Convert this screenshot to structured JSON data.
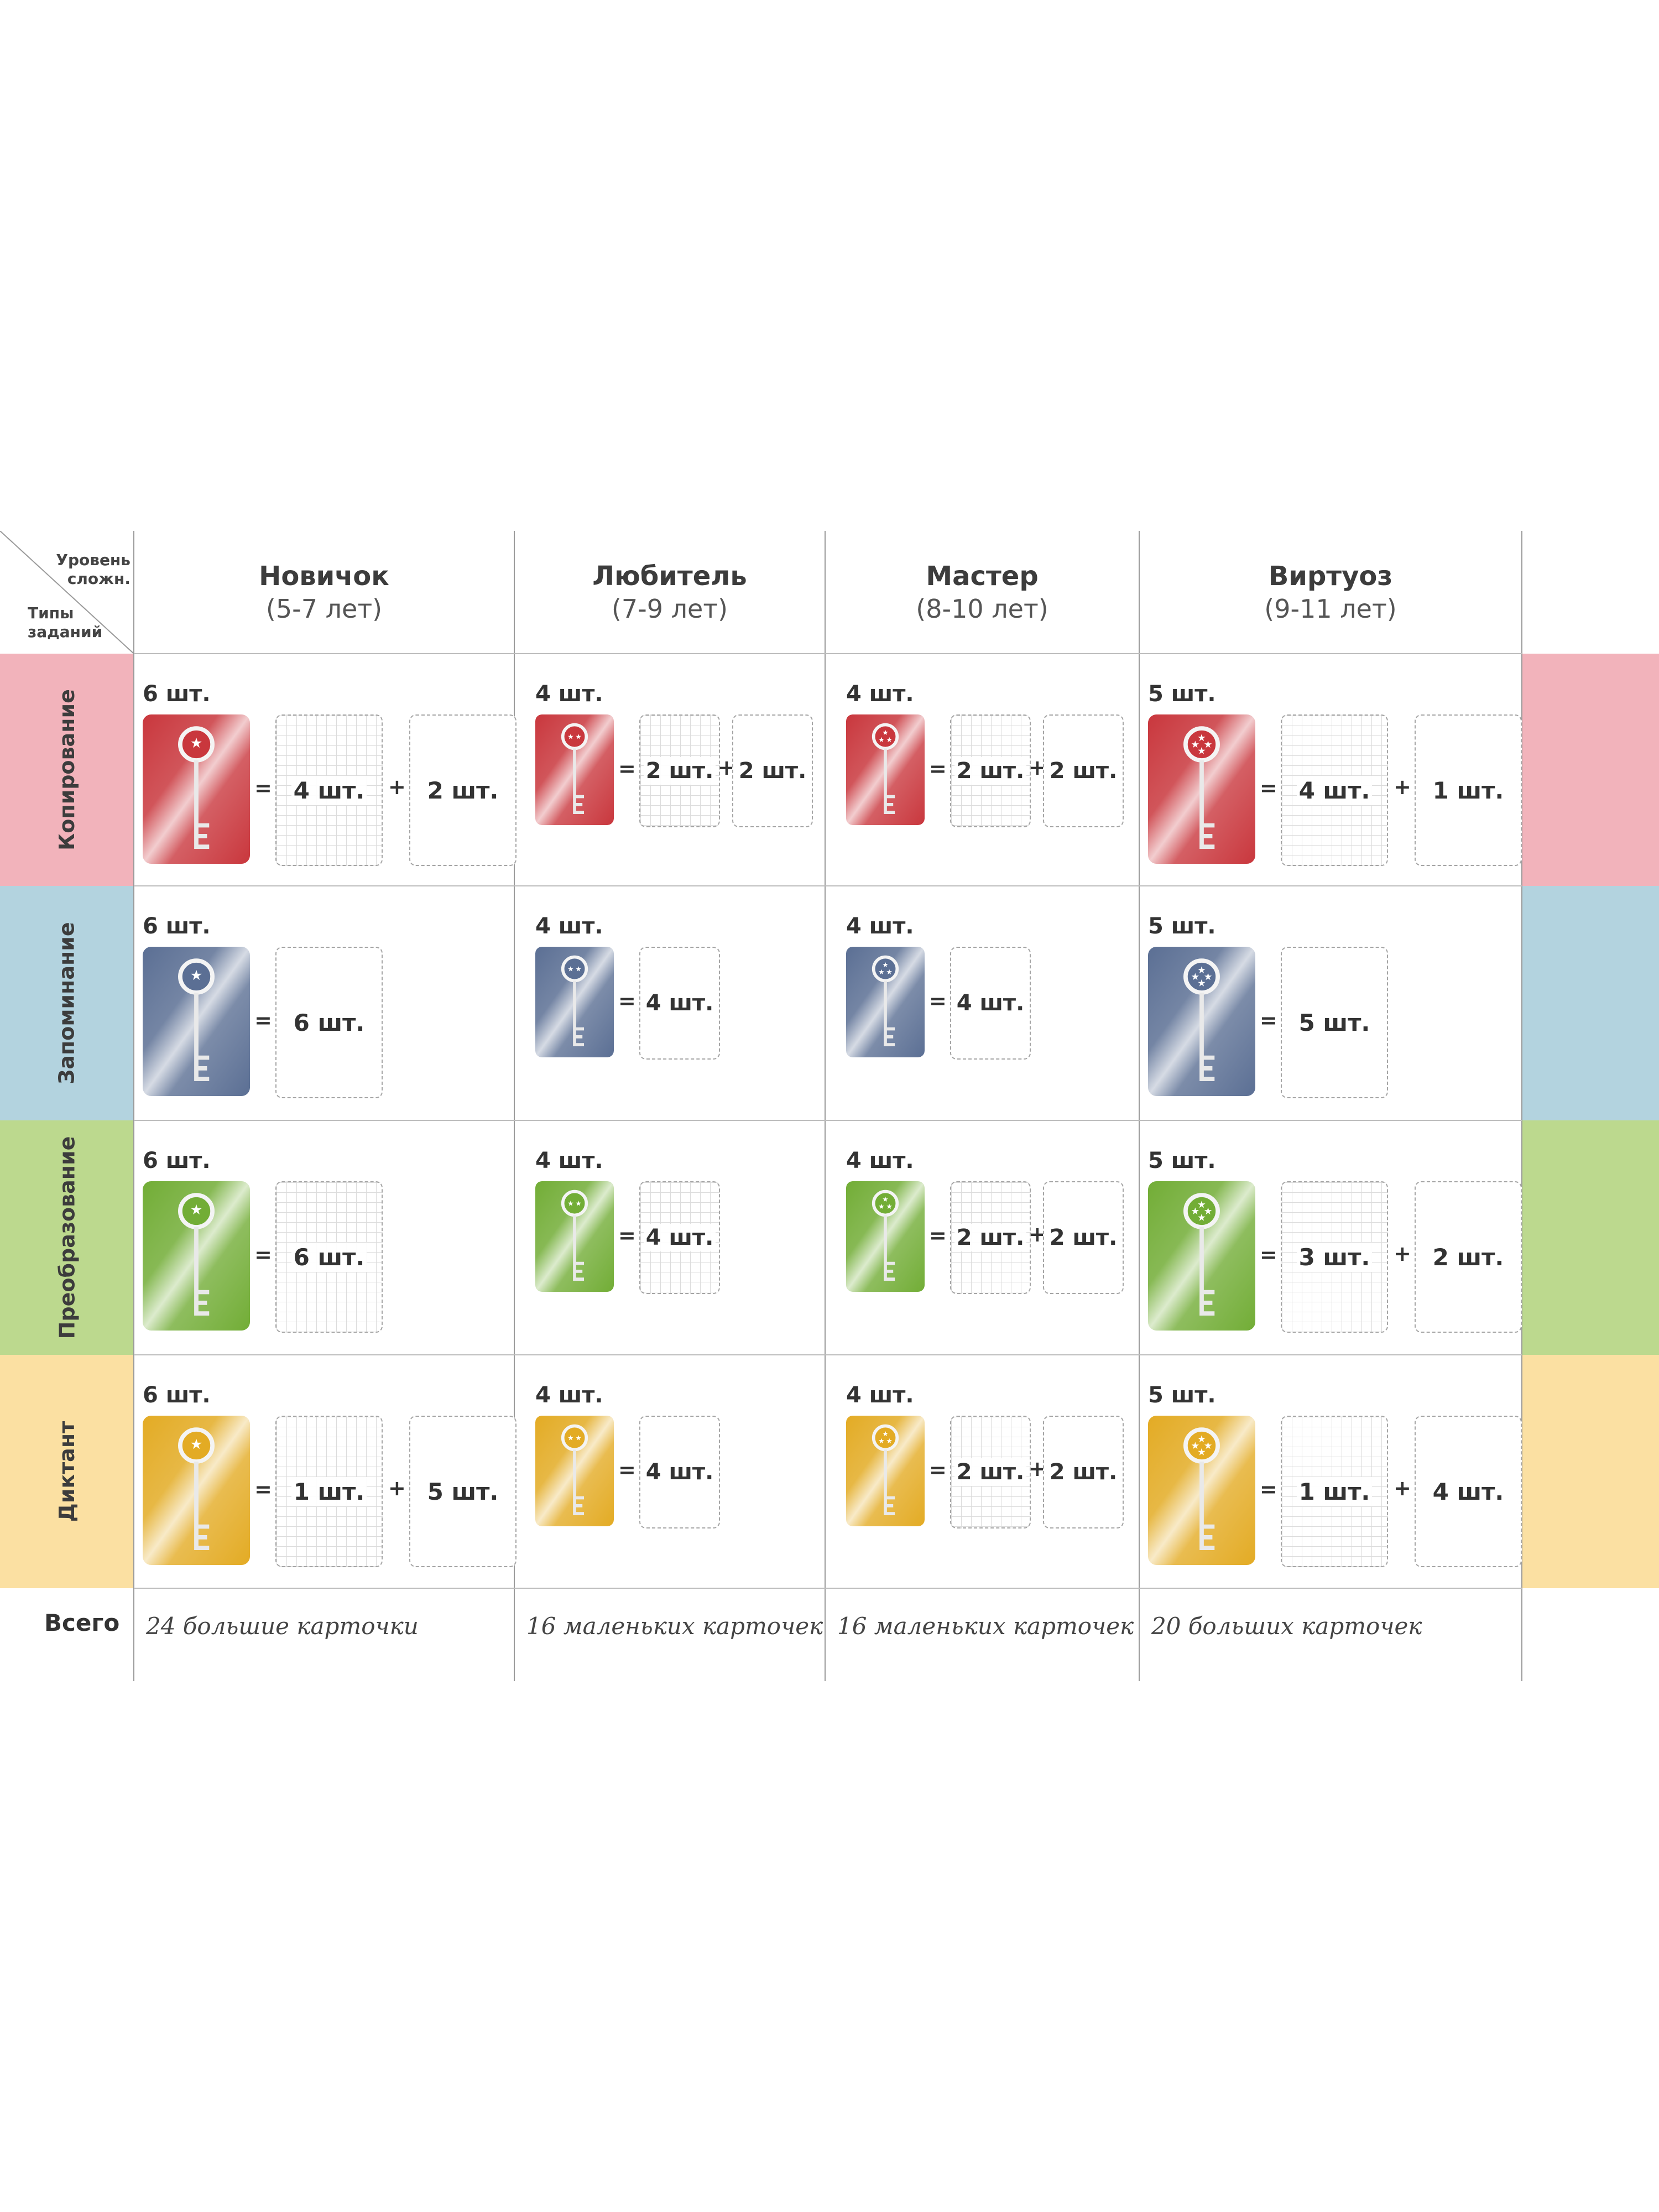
{
  "corner": {
    "top": "Уровень\nсложн.",
    "bottom": "Типы\nзаданий"
  },
  "levels": [
    {
      "name": "Новичок",
      "age": "(5-7 лет)"
    },
    {
      "name": "Любитель",
      "age": "(7-9 лет)"
    },
    {
      "name": "Мастер",
      "age": "(8-10 лет)"
    },
    {
      "name": "Виртуоз",
      "age": "(9-11 лет)"
    }
  ],
  "task_types": [
    {
      "name": "Копирование",
      "color": "#f2b3bb",
      "key_color": "#c9373d"
    },
    {
      "name": "Запоминание",
      "color": "#b3d3df",
      "key_color": "#5b6f94"
    },
    {
      "name": "Преобразование",
      "color": "#bcd98e",
      "key_color": "#72ad36"
    },
    {
      "name": "Диктант",
      "color": "#fbe0a2",
      "key_color": "#e3ab24"
    }
  ],
  "cells": [
    [
      {
        "count": "6 шт.",
        "stars": 1,
        "parts": [
          "4 шт.",
          "2 шт."
        ],
        "part_types": [
          "grid",
          "blank"
        ]
      },
      {
        "count": "4 шт.",
        "stars": 2,
        "parts": [
          "2 шт.",
          "2 шт."
        ],
        "part_types": [
          "grid",
          "blank"
        ]
      },
      {
        "count": "4 шт.",
        "stars": 3,
        "parts": [
          "2 шт.",
          "2 шт."
        ],
        "part_types": [
          "grid",
          "blank"
        ]
      },
      {
        "count": "5 шт.",
        "stars": 4,
        "parts": [
          "4 шт.",
          "1 шт."
        ],
        "part_types": [
          "grid",
          "blank"
        ]
      }
    ],
    [
      {
        "count": "6 шт.",
        "stars": 1,
        "parts": [
          "6 шт."
        ],
        "part_types": [
          "blank"
        ]
      },
      {
        "count": "4 шт.",
        "stars": 2,
        "parts": [
          "4 шт."
        ],
        "part_types": [
          "blank"
        ]
      },
      {
        "count": "4 шт.",
        "stars": 3,
        "parts": [
          "4 шт."
        ],
        "part_types": [
          "blank"
        ]
      },
      {
        "count": "5 шт.",
        "stars": 4,
        "parts": [
          "5 шт."
        ],
        "part_types": [
          "blank"
        ]
      }
    ],
    [
      {
        "count": "6 шт.",
        "stars": 1,
        "parts": [
          "6 шт."
        ],
        "part_types": [
          "grid"
        ]
      },
      {
        "count": "4 шт.",
        "stars": 2,
        "parts": [
          "4 шт."
        ],
        "part_types": [
          "grid"
        ]
      },
      {
        "count": "4 шт.",
        "stars": 3,
        "parts": [
          "2 шт.",
          "2 шт."
        ],
        "part_types": [
          "grid",
          "blank"
        ]
      },
      {
        "count": "5 шт.",
        "stars": 4,
        "parts": [
          "3 шт.",
          "2 шт."
        ],
        "part_types": [
          "grid",
          "blank"
        ]
      }
    ],
    [
      {
        "count": "6 шт.",
        "stars": 1,
        "parts": [
          "1 шт.",
          "5 шт."
        ],
        "part_types": [
          "grid",
          "blank"
        ]
      },
      {
        "count": "4 шт.",
        "stars": 2,
        "parts": [
          "4 шт."
        ],
        "part_types": [
          "blank"
        ]
      },
      {
        "count": "4 шт.",
        "stars": 3,
        "parts": [
          "2 шт.",
          "2 шт."
        ],
        "part_types": [
          "grid",
          "blank"
        ]
      },
      {
        "count": "5 шт.",
        "stars": 4,
        "parts": [
          "1 шт.",
          "4 шт."
        ],
        "part_types": [
          "grid",
          "blank"
        ]
      }
    ]
  ],
  "totals": {
    "label": "Всего",
    "values": [
      "24 большие карточки",
      "16 маленьких карточек",
      "16 маленьких карточек",
      "20 больших карточек"
    ]
  },
  "symbols": {
    "equals": "=",
    "plus": "+"
  },
  "key_icon": "key-icon"
}
